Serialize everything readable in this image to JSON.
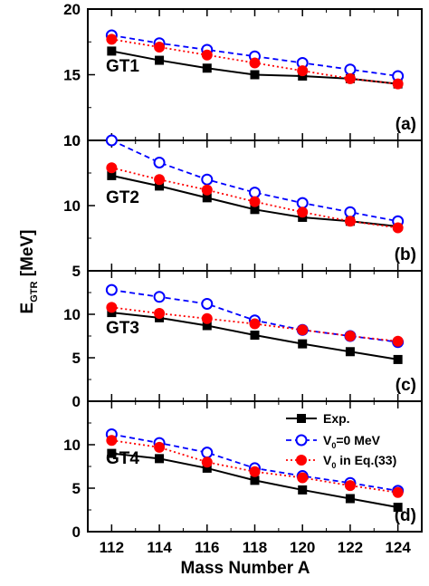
{
  "chart_data": [
    {
      "type": "line",
      "panel_label": "GT1",
      "tag": "(a)",
      "x": [
        112,
        114,
        116,
        118,
        120,
        122,
        124
      ],
      "ylim": [
        10,
        20
      ],
      "yticks": [
        10,
        15,
        20
      ],
      "series": [
        {
          "name": "Exp.",
          "values": [
            16.8,
            16.1,
            15.5,
            15.0,
            14.9,
            14.7,
            14.3
          ]
        },
        {
          "name": "V0=0 MeV",
          "values": [
            18.0,
            17.4,
            16.9,
            16.4,
            15.9,
            15.4,
            14.9
          ]
        },
        {
          "name": "V0 in Eq.(33)",
          "values": [
            17.7,
            17.1,
            16.5,
            15.9,
            15.3,
            14.7,
            14.3
          ]
        }
      ]
    },
    {
      "type": "line",
      "panel_label": "GT2",
      "tag": "(b)",
      "x": [
        112,
        114,
        116,
        118,
        120,
        122,
        124
      ],
      "ylim": [
        5,
        15
      ],
      "yticks": [
        5,
        10
      ],
      "ytick_labels": [
        "5",
        "10"
      ],
      "top_label": "10",
      "series": [
        {
          "name": "Exp.",
          "values": [
            12.3,
            11.5,
            10.6,
            9.7,
            9.1,
            8.8,
            8.4
          ]
        },
        {
          "name": "V0=0 MeV",
          "values": [
            15.0,
            13.3,
            12.0,
            11.0,
            10.2,
            9.5,
            8.8
          ]
        },
        {
          "name": "V0 in Eq.(33)",
          "values": [
            12.9,
            12.0,
            11.2,
            10.3,
            9.5,
            8.8,
            8.3
          ]
        }
      ]
    },
    {
      "type": "line",
      "panel_label": "GT3",
      "tag": "(c)",
      "x": [
        112,
        114,
        116,
        118,
        120,
        122,
        124
      ],
      "ylim": [
        0,
        15
      ],
      "yticks": [
        0,
        5,
        10
      ],
      "series": [
        {
          "name": "Exp.",
          "values": [
            10.2,
            9.6,
            8.7,
            7.6,
            6.6,
            5.7,
            4.8
          ]
        },
        {
          "name": "V0=0 MeV",
          "values": [
            12.8,
            12.0,
            11.2,
            9.3,
            8.2,
            7.5,
            6.8
          ]
        },
        {
          "name": "V0 in Eq.(33)",
          "values": [
            10.8,
            10.1,
            9.5,
            8.9,
            8.2,
            7.5,
            6.9
          ]
        }
      ]
    },
    {
      "type": "line",
      "panel_label": "GT4",
      "tag": "(d)",
      "x": [
        112,
        114,
        116,
        118,
        120,
        122,
        124
      ],
      "ylim": [
        0,
        15
      ],
      "yticks": [
        0,
        5,
        10
      ],
      "series": [
        {
          "name": "Exp.",
          "values": [
            9.0,
            8.4,
            7.3,
            5.9,
            4.8,
            3.8,
            2.8
          ]
        },
        {
          "name": "V0=0 MeV",
          "values": [
            11.2,
            10.2,
            9.1,
            7.3,
            6.4,
            5.6,
            4.7
          ]
        },
        {
          "name": "V0 in Eq.(33)",
          "values": [
            10.5,
            9.7,
            8.0,
            6.9,
            6.2,
            5.3,
            4.5
          ]
        }
      ]
    }
  ],
  "axes": {
    "xlabel": "Mass Number A",
    "ylabel_main": "E",
    "ylabel_sub": "GTR",
    "ylabel_unit": " [MeV]",
    "xticks": [
      112,
      114,
      116,
      118,
      120,
      122,
      124
    ]
  },
  "legend": {
    "placement": "inside panel (d), top-right",
    "entries": [
      {
        "text": "Exp."
      },
      {
        "pre": "V",
        "sub": "0",
        "post": "=0 MeV"
      },
      {
        "pre": "V",
        "sub": "0",
        "post": " in Eq.(33)"
      }
    ]
  },
  "colors": {
    "exp": "#000000",
    "v0zero": "#0000ff",
    "v0eq": "#ff0000"
  }
}
